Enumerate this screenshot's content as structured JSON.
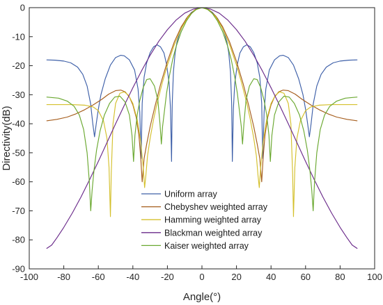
{
  "chart_data": {
    "type": "line",
    "xlabel": "Angle(°)",
    "ylabel": "Directivity(dB)",
    "xlim": [
      -100,
      100
    ],
    "ylim": [
      -90,
      0
    ],
    "xticks": [
      -100,
      -80,
      -60,
      -40,
      -20,
      0,
      20,
      40,
      60,
      80,
      100
    ],
    "yticks": [
      0,
      -10,
      -20,
      -30,
      -40,
      -50,
      -60,
      -70,
      -80,
      -90
    ],
    "grid": false,
    "legend_position": "lower-center",
    "series": [
      {
        "name": "Uniform array",
        "color": "#3d5fa8",
        "points": [
          [
            0,
            0
          ],
          [
            3,
            -0.4
          ],
          [
            6,
            -1.6
          ],
          [
            9,
            -3.7
          ],
          [
            11,
            -5.8
          ],
          [
            13,
            -8.8
          ],
          [
            14.5,
            -12
          ],
          [
            15.5,
            -15.5
          ],
          [
            16.5,
            -22
          ],
          [
            17.2,
            -33
          ],
          [
            17.6,
            -53
          ],
          [
            18.2,
            -35
          ],
          [
            19,
            -26
          ],
          [
            20.5,
            -19.5
          ],
          [
            22,
            -15.6
          ],
          [
            24,
            -13.5
          ],
          [
            26,
            -12.8
          ],
          [
            28,
            -13.5
          ],
          [
            30,
            -15.5
          ],
          [
            32,
            -19
          ],
          [
            33.5,
            -24
          ],
          [
            34.6,
            -33
          ],
          [
            35.2,
            -52
          ],
          [
            36,
            -36
          ],
          [
            37,
            -28
          ],
          [
            39,
            -21.5
          ],
          [
            42,
            -18
          ],
          [
            45,
            -16.6
          ],
          [
            47,
            -16.4
          ],
          [
            50,
            -17.2
          ],
          [
            53,
            -19.8
          ],
          [
            56,
            -24.5
          ],
          [
            58.5,
            -30
          ],
          [
            60,
            -35
          ],
          [
            61.2,
            -40
          ],
          [
            62.2,
            -44.5
          ],
          [
            63.2,
            -40
          ],
          [
            64.5,
            -33
          ],
          [
            66.5,
            -27
          ],
          [
            69,
            -23
          ],
          [
            72,
            -20.5
          ],
          [
            76,
            -19
          ],
          [
            80,
            -18.4
          ],
          [
            85,
            -18.1
          ],
          [
            90,
            -18
          ]
        ]
      },
      {
        "name": "Chebyshev weighted array",
        "color": "#a55c1b",
        "points": [
          [
            0,
            0
          ],
          [
            4,
            -0.7
          ],
          [
            8,
            -2.9
          ],
          [
            12,
            -6.6
          ],
          [
            16,
            -11.8
          ],
          [
            20,
            -18.5
          ],
          [
            24,
            -26.5
          ],
          [
            27,
            -33.5
          ],
          [
            30,
            -41
          ],
          [
            32,
            -47
          ],
          [
            33.5,
            -52
          ],
          [
            34.6,
            -60
          ],
          [
            35.4,
            -52
          ],
          [
            36.5,
            -44
          ],
          [
            38,
            -38
          ],
          [
            40,
            -33.5
          ],
          [
            42,
            -30.8
          ],
          [
            44.5,
            -29
          ],
          [
            47,
            -28.4
          ],
          [
            50,
            -28.6
          ],
          [
            54,
            -29.8
          ],
          [
            58,
            -31.6
          ],
          [
            63,
            -33.5
          ],
          [
            68,
            -35.2
          ],
          [
            73,
            -36.6
          ],
          [
            78,
            -37.7
          ],
          [
            84,
            -38.5
          ],
          [
            90,
            -39
          ]
        ]
      },
      {
        "name": "Hamming weighted array",
        "color": "#d4c02c",
        "points": [
          [
            0,
            0
          ],
          [
            4,
            -0.8
          ],
          [
            8,
            -3.2
          ],
          [
            12,
            -7.2
          ],
          [
            16,
            -12.8
          ],
          [
            20,
            -19.8
          ],
          [
            23,
            -26
          ],
          [
            26,
            -33
          ],
          [
            28,
            -38.5
          ],
          [
            30,
            -45
          ],
          [
            31.5,
            -51
          ],
          [
            32.5,
            -58
          ],
          [
            33.2,
            -62
          ],
          [
            34,
            -55
          ],
          [
            35.5,
            -46
          ],
          [
            37.5,
            -38.5
          ],
          [
            40,
            -33
          ],
          [
            42.5,
            -30.2
          ],
          [
            45,
            -29
          ],
          [
            47.5,
            -29.5
          ],
          [
            50,
            -33
          ],
          [
            51.5,
            -40
          ],
          [
            52.5,
            -57
          ],
          [
            53,
            -72
          ],
          [
            53.8,
            -55
          ],
          [
            55,
            -45
          ],
          [
            57,
            -39
          ],
          [
            60,
            -35.5
          ],
          [
            63,
            -34.2
          ],
          [
            68,
            -33.6
          ],
          [
            75,
            -33.4
          ],
          [
            82,
            -33.4
          ],
          [
            90,
            -33.4
          ]
        ]
      },
      {
        "name": "Blackman weighted array",
        "color": "#6a2a8a",
        "points": [
          [
            0,
            0
          ],
          [
            5,
            -0.5
          ],
          [
            10,
            -1.9
          ],
          [
            15,
            -4.3
          ],
          [
            20,
            -7.6
          ],
          [
            25,
            -11.6
          ],
          [
            30,
            -16.4
          ],
          [
            35,
            -21.8
          ],
          [
            40,
            -27.6
          ],
          [
            45,
            -33.7
          ],
          [
            50,
            -40
          ],
          [
            55,
            -46.5
          ],
          [
            60,
            -53
          ],
          [
            65,
            -59.2
          ],
          [
            70,
            -65.2
          ],
          [
            75,
            -70.7
          ],
          [
            80,
            -75.7
          ],
          [
            84,
            -79.3
          ],
          [
            87,
            -81.8
          ],
          [
            90,
            -83
          ]
        ]
      },
      {
        "name": "Kaiser weighted array",
        "color": "#6aa830",
        "points": [
          [
            0,
            0
          ],
          [
            3,
            -0.5
          ],
          [
            6,
            -2
          ],
          [
            9,
            -4.6
          ],
          [
            12,
            -8.3
          ],
          [
            15,
            -13.5
          ],
          [
            17,
            -18
          ],
          [
            19,
            -24
          ],
          [
            20.5,
            -29.5
          ],
          [
            21.8,
            -36
          ],
          [
            22.8,
            -41
          ],
          [
            23.5,
            -47
          ],
          [
            24.3,
            -40
          ],
          [
            25.5,
            -32
          ],
          [
            27.5,
            -27
          ],
          [
            30,
            -24.5
          ],
          [
            32,
            -24.8
          ],
          [
            34,
            -27.5
          ],
          [
            36,
            -32
          ],
          [
            37.5,
            -37
          ],
          [
            38.8,
            -44
          ],
          [
            39.6,
            -53
          ],
          [
            40.5,
            -44
          ],
          [
            42,
            -37
          ],
          [
            44.5,
            -32.5
          ],
          [
            47.5,
            -30.5
          ],
          [
            50.5,
            -30.8
          ],
          [
            53.5,
            -33
          ],
          [
            56.5,
            -37
          ],
          [
            59,
            -42.5
          ],
          [
            61,
            -49
          ],
          [
            62.5,
            -56
          ],
          [
            63.6,
            -63
          ],
          [
            64.4,
            -70
          ],
          [
            65.2,
            -60
          ],
          [
            66.5,
            -50
          ],
          [
            68.5,
            -42
          ],
          [
            71,
            -37
          ],
          [
            74,
            -34
          ],
          [
            78,
            -32.2
          ],
          [
            83,
            -31.2
          ],
          [
            90,
            -30.8
          ]
        ]
      }
    ]
  }
}
